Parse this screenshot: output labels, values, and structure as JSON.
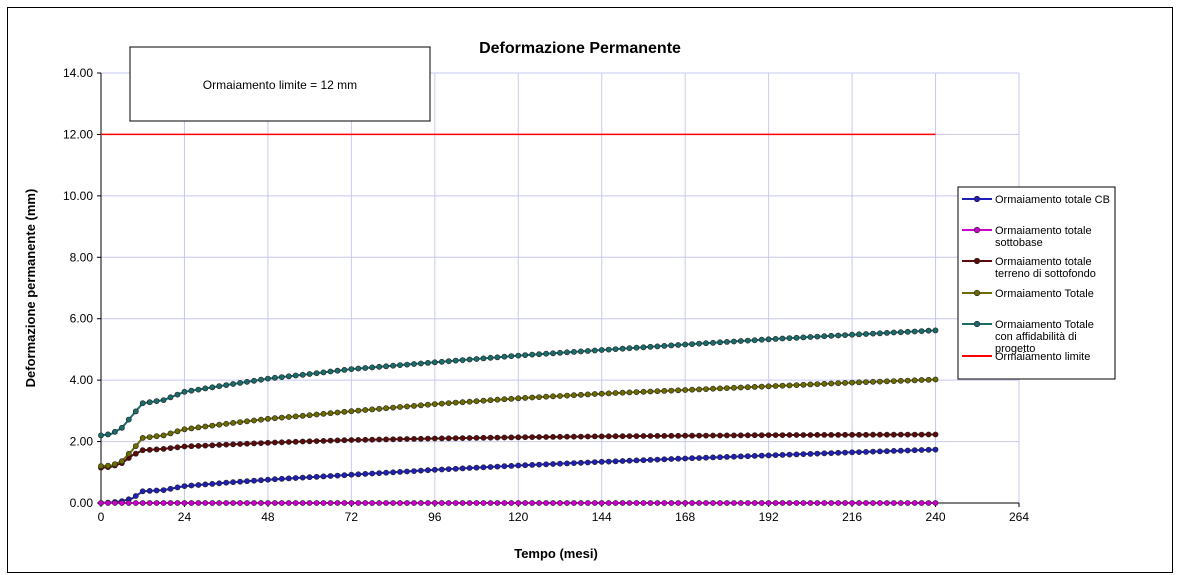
{
  "chart_data": {
    "type": "line",
    "title": "Deformazione Permanente",
    "xlabel": "Tempo (mesi)",
    "ylabel": "Deformazione permanente (mm)",
    "xlim": [
      0,
      264
    ],
    "ylim": [
      0,
      14
    ],
    "x_ticks": [
      0,
      24,
      48,
      72,
      96,
      120,
      144,
      168,
      192,
      216,
      240,
      264
    ],
    "y_ticks": [
      "0.00",
      "2.00",
      "4.00",
      "6.00",
      "8.00",
      "10.00",
      "12.00",
      "14.00"
    ],
    "grid": true,
    "legend_position": "right",
    "annotation": "Ormaiamento limite = 12 mm",
    "series": [
      {
        "name": "Ormaiamento totale CB",
        "color": "#1f1fb4",
        "marker": true,
        "points": [
          [
            0,
            0.0
          ],
          [
            3,
            0.02
          ],
          [
            6,
            0.06
          ],
          [
            9,
            0.15
          ],
          [
            12,
            0.38
          ],
          [
            18,
            0.42
          ],
          [
            24,
            0.55
          ],
          [
            36,
            0.66
          ],
          [
            48,
            0.76
          ],
          [
            60,
            0.84
          ],
          [
            72,
            0.92
          ],
          [
            96,
            1.08
          ],
          [
            120,
            1.22
          ],
          [
            144,
            1.34
          ],
          [
            168,
            1.45
          ],
          [
            192,
            1.55
          ],
          [
            216,
            1.65
          ],
          [
            240,
            1.74
          ]
        ]
      },
      {
        "name": "Ormaiamento totale sottobase",
        "color": "#cc00cc",
        "marker": true,
        "points": [
          [
            0,
            0.0
          ],
          [
            24,
            0.0
          ],
          [
            48,
            0.0
          ],
          [
            72,
            0.0
          ],
          [
            96,
            0.0
          ],
          [
            120,
            0.0
          ],
          [
            144,
            0.0
          ],
          [
            168,
            0.0
          ],
          [
            192,
            0.0
          ],
          [
            216,
            0.0
          ],
          [
            240,
            0.0
          ]
        ]
      },
      {
        "name": "Ormaiamento totale terreno di sottofondo",
        "color": "#5a0a0a",
        "marker": true,
        "points": [
          [
            0,
            1.15
          ],
          [
            3,
            1.18
          ],
          [
            6,
            1.3
          ],
          [
            9,
            1.55
          ],
          [
            12,
            1.72
          ],
          [
            18,
            1.76
          ],
          [
            24,
            1.84
          ],
          [
            36,
            1.9
          ],
          [
            48,
            1.96
          ],
          [
            60,
            2.01
          ],
          [
            72,
            2.05
          ],
          [
            96,
            2.1
          ],
          [
            120,
            2.14
          ],
          [
            144,
            2.17
          ],
          [
            168,
            2.19
          ],
          [
            192,
            2.21
          ],
          [
            216,
            2.22
          ],
          [
            240,
            2.23
          ]
        ]
      },
      {
        "name": "Ormaiamento Totale",
        "color": "#6b6b00",
        "marker": true,
        "points": [
          [
            0,
            1.2
          ],
          [
            3,
            1.22
          ],
          [
            6,
            1.36
          ],
          [
            9,
            1.72
          ],
          [
            12,
            2.12
          ],
          [
            18,
            2.2
          ],
          [
            24,
            2.4
          ],
          [
            36,
            2.58
          ],
          [
            48,
            2.74
          ],
          [
            60,
            2.86
          ],
          [
            72,
            2.99
          ],
          [
            96,
            3.22
          ],
          [
            120,
            3.41
          ],
          [
            144,
            3.56
          ],
          [
            168,
            3.68
          ],
          [
            192,
            3.8
          ],
          [
            216,
            3.92
          ],
          [
            240,
            4.02
          ]
        ]
      },
      {
        "name": "Ormaiamento Totale con affidabilità di progetto",
        "color": "#1b6b6b",
        "marker": true,
        "points": [
          [
            0,
            2.2
          ],
          [
            3,
            2.25
          ],
          [
            6,
            2.45
          ],
          [
            9,
            2.85
          ],
          [
            12,
            3.25
          ],
          [
            18,
            3.35
          ],
          [
            24,
            3.62
          ],
          [
            36,
            3.84
          ],
          [
            48,
            4.05
          ],
          [
            60,
            4.2
          ],
          [
            72,
            4.36
          ],
          [
            96,
            4.58
          ],
          [
            120,
            4.8
          ],
          [
            144,
            4.98
          ],
          [
            168,
            5.16
          ],
          [
            192,
            5.33
          ],
          [
            216,
            5.48
          ],
          [
            240,
            5.62
          ]
        ]
      },
      {
        "name": "Ormaiamento limite",
        "color": "#ff0000",
        "marker": false,
        "points": [
          [
            0,
            12.0
          ],
          [
            240,
            12.0
          ]
        ]
      }
    ]
  }
}
